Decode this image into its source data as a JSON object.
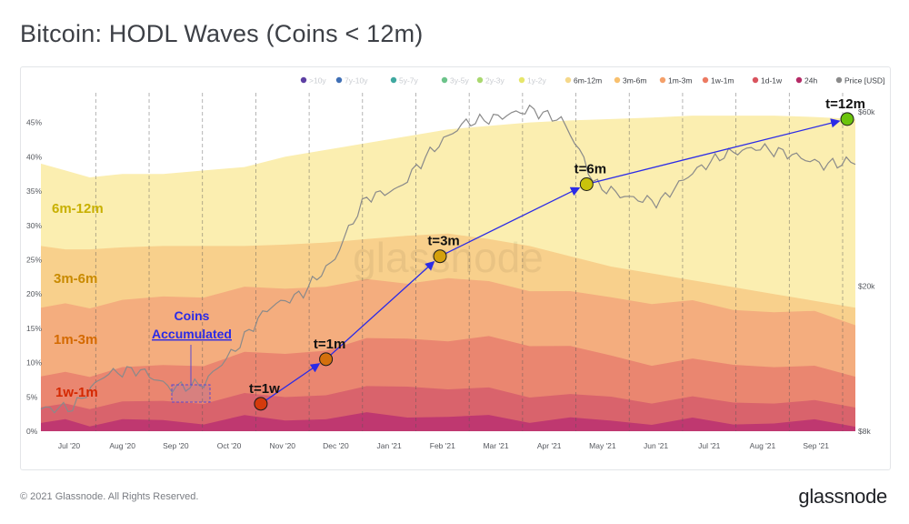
{
  "page": {
    "title": "Bitcoin: HODL Waves (Coins < 12m)",
    "copyright": "© 2021 Glassnode. All Rights Reserved.",
    "logo": "glassnode",
    "watermark": "glassnode"
  },
  "colors": {
    "6m-12m": "#fbeeb0",
    "3m-6m": "#f8d08c",
    "1m-3m": "#f4ad7e",
    "1w-1m": "#ea8670",
    "1d-1w": "#d9636c",
    "24h": "#bf3870",
    "price": "#8a8a8a",
    "arrow": "#2b2be6",
    "label_6m12m": "#c8b000",
    "label_3m6m": "#c98a00",
    "label_1m3m": "#d46a00",
    "label_1w1m": "#d42800"
  },
  "chart_data": {
    "type": "area",
    "title": "Bitcoin: HODL Waves (Coins < 12m)",
    "x_labels": [
      "Jul '20",
      "Aug '20",
      "Sep '20",
      "Oct '20",
      "Nov '20",
      "Dec '20",
      "Jan '21",
      "Feb '21",
      "Mar '21",
      "Apr '21",
      "May '21",
      "Jun '21",
      "Jul '21",
      "Aug '21",
      "Sep '21"
    ],
    "y_left_ticks": [
      "0%",
      "5%",
      "10%",
      "15%",
      "20%",
      "25%",
      "30%",
      "35%",
      "40%",
      "45%"
    ],
    "y_left_range": [
      0,
      48
    ],
    "y_right_ticks": [
      "$8k",
      "$20k",
      "$60k"
    ],
    "y_right_scale": "log",
    "legend_position": "top",
    "legend": [
      {
        "label": ">10y",
        "color": "#5d3fa3"
      },
      {
        "label": "7y-10y",
        "color": "#3f6fb5"
      },
      {
        "label": "5y-7y",
        "color": "#3fa8a0"
      },
      {
        "label": "3y-5y",
        "color": "#6cc38a"
      },
      {
        "label": "2y-3y",
        "color": "#a9d86f"
      },
      {
        "label": "1y-2y",
        "color": "#e6e66a"
      },
      {
        "label": "6m-12m",
        "color": "#f5d88a"
      },
      {
        "label": "3m-6m",
        "color": "#f8c06e"
      },
      {
        "label": "1m-3m",
        "color": "#f4a06a"
      },
      {
        "label": "1w-1m",
        "color": "#ec7a62"
      },
      {
        "label": "1d-1w",
        "color": "#d9545e"
      },
      {
        "label": "24h",
        "color": "#b52a66"
      },
      {
        "label": "Price [USD]",
        "color": "#8a8a8a"
      }
    ],
    "band_labels": [
      "6m-12m",
      "3m-6m",
      "1m-3m",
      "1w-1m"
    ],
    "cumulative_series": {
      "t": [
        0,
        0.03,
        0.06,
        0.1,
        0.15,
        0.2,
        0.25,
        0.3,
        0.35,
        0.4,
        0.45,
        0.5,
        0.55,
        0.6,
        0.65,
        0.7,
        0.75,
        0.8,
        0.85,
        0.9,
        0.95,
        1
      ],
      "6m-12m": [
        39,
        38,
        37,
        37.5,
        37.5,
        38,
        38.5,
        40,
        41,
        42,
        43,
        44,
        44.5,
        45,
        45.3,
        45.5,
        45.7,
        46,
        46,
        46,
        45.8,
        45.5
      ],
      "3m-6m": [
        27,
        26.5,
        26.5,
        26.8,
        27,
        27,
        27,
        27.2,
        27.5,
        28,
        28.5,
        28.8,
        28,
        27,
        25.5,
        24,
        23,
        22,
        21,
        20,
        19,
        18
      ],
      "1m-3m": [
        18,
        18.2,
        18.5,
        18.8,
        19.5,
        20,
        20.5,
        21,
        21.3,
        21.6,
        22,
        22.2,
        21.5,
        21,
        20,
        19.5,
        19,
        18.5,
        18,
        17.5,
        17,
        16
      ],
      "1w-1m": [
        8,
        8.2,
        8.5,
        9,
        9.5,
        10,
        11,
        11.5,
        12,
        13,
        14,
        13,
        13.5,
        13,
        12,
        11,
        10,
        10,
        10,
        9.5,
        9,
        8.5
      ],
      "1d-1w": [
        3.5,
        3.6,
        3.8,
        4,
        4.3,
        4.5,
        5,
        5.2,
        5.5,
        6,
        7,
        6,
        6,
        5.5,
        5,
        5,
        4.5,
        4.5,
        4.5,
        4.2,
        4,
        4
      ],
      "24h": [
        1.2,
        1.3,
        1.3,
        1.4,
        1.5,
        1.5,
        1.8,
        1.8,
        2,
        2.2,
        2.5,
        2,
        2,
        1.8,
        1.6,
        1.5,
        1.4,
        1.4,
        1.3,
        1.3,
        1.2,
        1.2
      ]
    },
    "price_series": {
      "t": [
        0,
        0.04,
        0.08,
        0.12,
        0.16,
        0.2,
        0.24,
        0.28,
        0.32,
        0.36,
        0.4,
        0.44,
        0.48,
        0.52,
        0.56,
        0.6,
        0.64,
        0.68,
        0.72,
        0.76,
        0.8,
        0.84,
        0.88,
        0.92,
        0.96,
        1
      ],
      "usd": [
        9200,
        9300,
        11500,
        11800,
        10500,
        10800,
        13500,
        17500,
        19000,
        23500,
        35000,
        37000,
        47000,
        56000,
        58000,
        61000,
        57000,
        38000,
        35000,
        34000,
        41000,
        46000,
        48000,
        46000,
        43000,
        44000
      ]
    },
    "milestones": [
      {
        "label": "t=1w",
        "color": "#d43a0c",
        "t": 0.27,
        "pct": 4
      },
      {
        "label": "t=1m",
        "color": "#d4700c",
        "t": 0.35,
        "pct": 10.5
      },
      {
        "label": "t=3m",
        "color": "#d4a00c",
        "t": 0.49,
        "pct": 25.5
      },
      {
        "label": "t=6m",
        "color": "#c9c30c",
        "t": 0.67,
        "pct": 36
      },
      {
        "label": "t=12m",
        "color": "#6bc40c",
        "t": 0.99,
        "pct": 45.5
      }
    ],
    "annotation": {
      "text_line1": "Coins",
      "text_line2": "Accumulated"
    }
  }
}
